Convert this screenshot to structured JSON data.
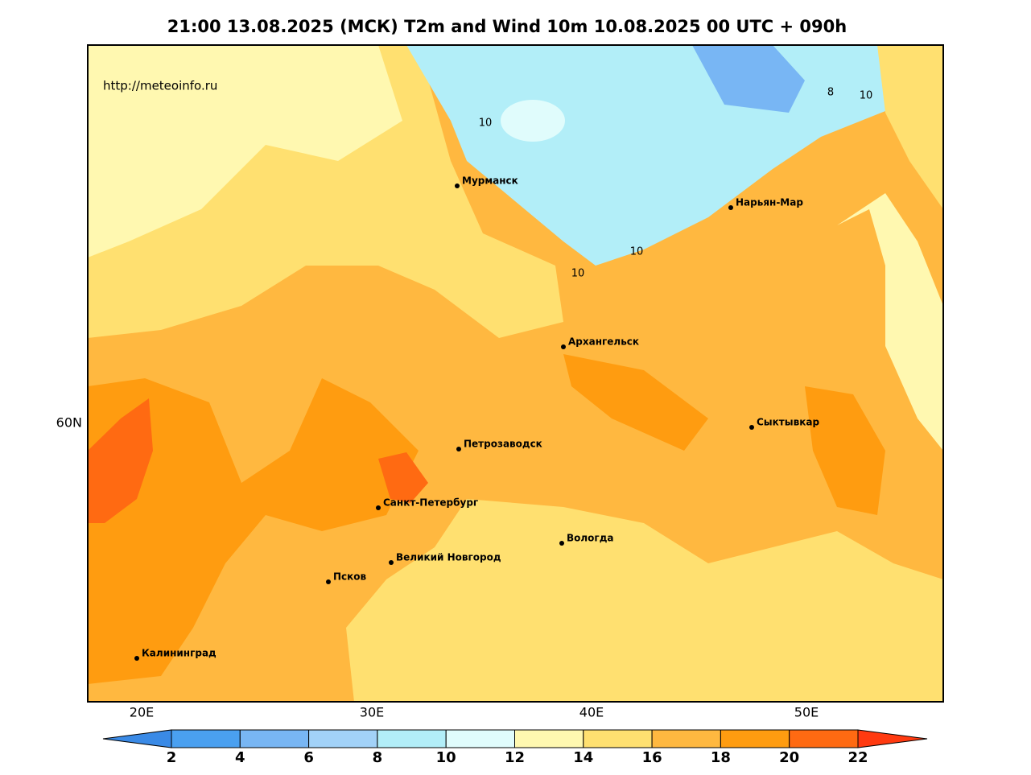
{
  "title": "21:00 13.08.2025 (МСК) T2m and Wind 10m 10.08.2025 00 UTC + 090h",
  "watermark": "http://meteoinfo.ru",
  "axes": {
    "longitude_labels": [
      "20E",
      "30E",
      "40E",
      "50E"
    ],
    "latitude_labels": [
      "60N"
    ]
  },
  "cities": [
    "Мурманск",
    "Нарьян-Мар",
    "Архангельск",
    "Сыктывкар",
    "Петрозаводск",
    "Санкт-Петербург",
    "Вологда",
    "Великий Новгород",
    "Псков",
    "Калининград"
  ],
  "contour_labels": [
    "10",
    "8",
    "10",
    "10",
    "10"
  ],
  "colorbar": {
    "ticks": [
      2,
      4,
      6,
      8,
      10,
      12,
      14,
      16,
      18,
      20,
      22
    ],
    "colors": [
      "#3a8ae6",
      "#4aa0f0",
      "#78b6f4",
      "#a2d2f8",
      "#b2eef8",
      "#e0fcfc",
      "#fff8b0",
      "#ffe070",
      "#ffb840",
      "#ff9c10",
      "#ff6a12",
      "#ff3a10"
    ]
  }
}
